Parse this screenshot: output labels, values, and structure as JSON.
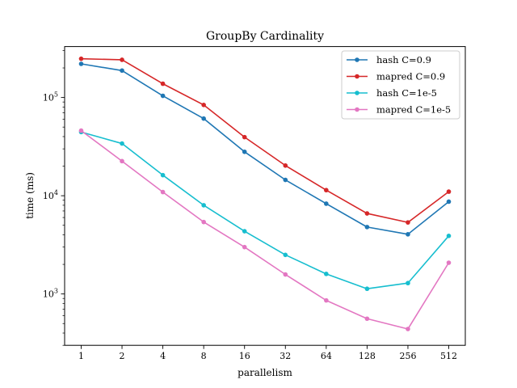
{
  "chart_data": {
    "type": "line",
    "title": "GroupBy Cardinality",
    "xlabel": "parallelism",
    "ylabel": "time (ms)",
    "x": [
      1,
      2,
      4,
      8,
      16,
      32,
      64,
      128,
      256,
      512
    ],
    "x_tick_labels": [
      "1",
      "2",
      "4",
      "8",
      "16",
      "32",
      "64",
      "128",
      "256",
      "512"
    ],
    "x_scale": "log2",
    "y_scale": "log10",
    "ylim": [
      300,
      330000
    ],
    "y_ticks": [
      {
        "value": 1000,
        "base": "10",
        "exp": "3"
      },
      {
        "value": 10000,
        "base": "10",
        "exp": "4"
      },
      {
        "value": 100000,
        "base": "10",
        "exp": "5"
      }
    ],
    "grid": false,
    "legend_position": "top-right",
    "series": [
      {
        "name": "hash C=0.9",
        "color": "#1f77b4",
        "values": [
          220000,
          188000,
          104000,
          61000,
          28000,
          14500,
          8300,
          4800,
          4050,
          8700
        ]
      },
      {
        "name": "mapred C=0.9",
        "color": "#d62728",
        "values": [
          248000,
          242000,
          138000,
          84000,
          39500,
          20300,
          11400,
          6600,
          5350,
          11000
        ]
      },
      {
        "name": "hash C=1e-5",
        "color": "#17becf",
        "values": [
          44500,
          34000,
          16200,
          8000,
          4350,
          2500,
          1600,
          1130,
          1290,
          3900
        ]
      },
      {
        "name": "mapred C=1e-5",
        "color": "#e377c2",
        "values": [
          46000,
          22500,
          10900,
          5400,
          3000,
          1580,
          860,
          560,
          440,
          2080
        ]
      }
    ]
  }
}
